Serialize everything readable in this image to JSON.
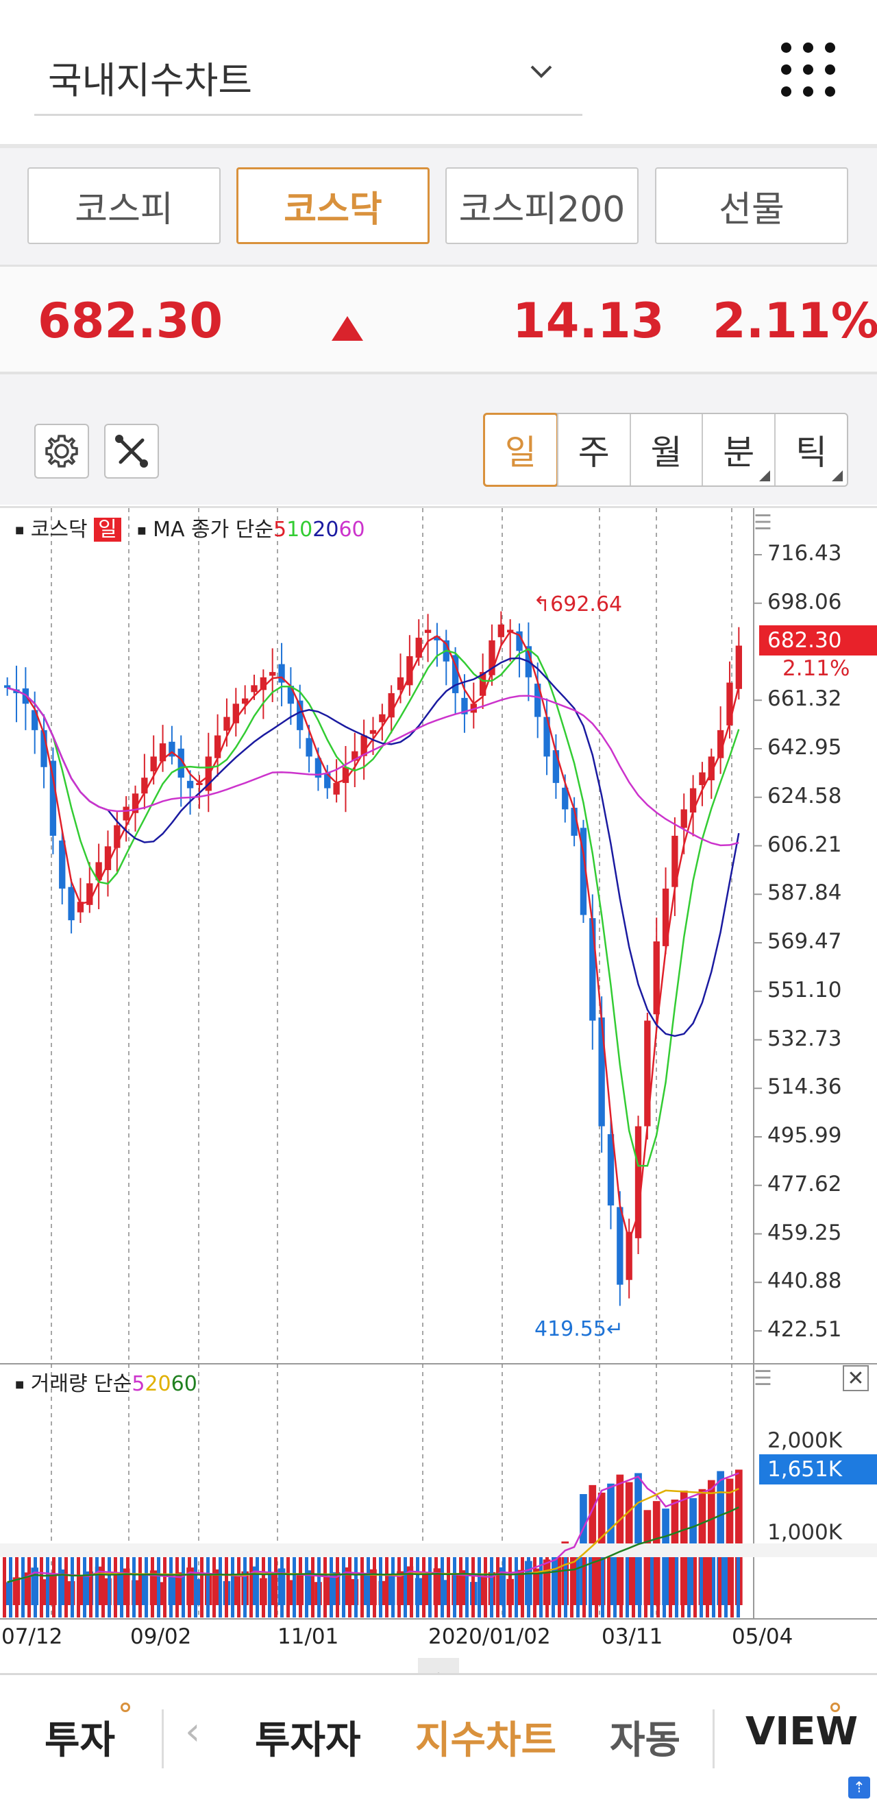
{
  "header": {
    "index_select": "국내지수차트"
  },
  "market_tabs": [
    {
      "label": "코스피",
      "active": false
    },
    {
      "label": "코스닥",
      "active": true
    },
    {
      "label": "코스피200",
      "active": false
    },
    {
      "label": "선물",
      "active": false
    }
  ],
  "price": {
    "current": "682.30",
    "change": "14.13",
    "change_pct": "2.11%",
    "direction": "up"
  },
  "period_tabs": [
    {
      "label": "일",
      "active": true
    },
    {
      "label": "주",
      "active": false
    },
    {
      "label": "월",
      "active": false
    },
    {
      "label": "분",
      "active": false
    },
    {
      "label": "틱",
      "active": false
    }
  ],
  "chart_data": [
    {
      "type": "candlestick",
      "legend": {
        "name": "코스닥",
        "period": "일",
        "ma_label": "MA 종가 단순",
        "ma_periods": [
          "5",
          "10",
          "20",
          "60"
        ]
      },
      "y_ticks": [
        "716.43",
        "698.06",
        "680.00",
        "661.32",
        "642.95",
        "624.58",
        "606.21",
        "587.84",
        "569.47",
        "551.10",
        "532.73",
        "514.36",
        "495.99",
        "477.62",
        "459.25",
        "440.88",
        "422.51"
      ],
      "ylim": [
        410,
        725
      ],
      "high_label": "692.64",
      "low_label": "419.55",
      "last_price": "682.30",
      "last_pct": "2.11%",
      "closes_approx": [
        666,
        664,
        660,
        650,
        636,
        610,
        590,
        578,
        585,
        592,
        600,
        606,
        614,
        621,
        626,
        632,
        640,
        645,
        640,
        632,
        628,
        630,
        640,
        648,
        655,
        660,
        662,
        667,
        670,
        672,
        668,
        660,
        650,
        640,
        632,
        628,
        630,
        636,
        642,
        648,
        650,
        656,
        664,
        670,
        678,
        685,
        688,
        684,
        676,
        664,
        656,
        660,
        672,
        684,
        690,
        688,
        680,
        670,
        655,
        640,
        630,
        620,
        610,
        580,
        540,
        500,
        470,
        440,
        460,
        500,
        540,
        570,
        590,
        610,
        620,
        628,
        634,
        640,
        650,
        668,
        682
      ]
    },
    {
      "type": "bar",
      "legend": {
        "name": "거래량 단순",
        "ma_periods": [
          "5",
          "20",
          "60"
        ]
      },
      "y_ticks": [
        "2,000K",
        "1,000K"
      ],
      "last_volume": "1,651K"
    }
  ],
  "x_ticks": [
    "07/12",
    "09/02",
    "11/01",
    "2020/01/02",
    "03/11",
    "05/04"
  ],
  "bottom_nav": {
    "items": [
      "투자",
      "투자자",
      "지수차트",
      "자동",
      "VIEW"
    ],
    "active": "지수차트"
  },
  "colors": {
    "up": "#d9232c",
    "down": "#1e73d6",
    "accent": "#d9913c",
    "ma5": "#e0202a",
    "ma10": "#33cc33",
    "ma20": "#1a1aa0",
    "ma60": "#cc33cc",
    "vma5": "#cc33cc",
    "vma20": "#e0b000",
    "vma60": "#208020"
  }
}
